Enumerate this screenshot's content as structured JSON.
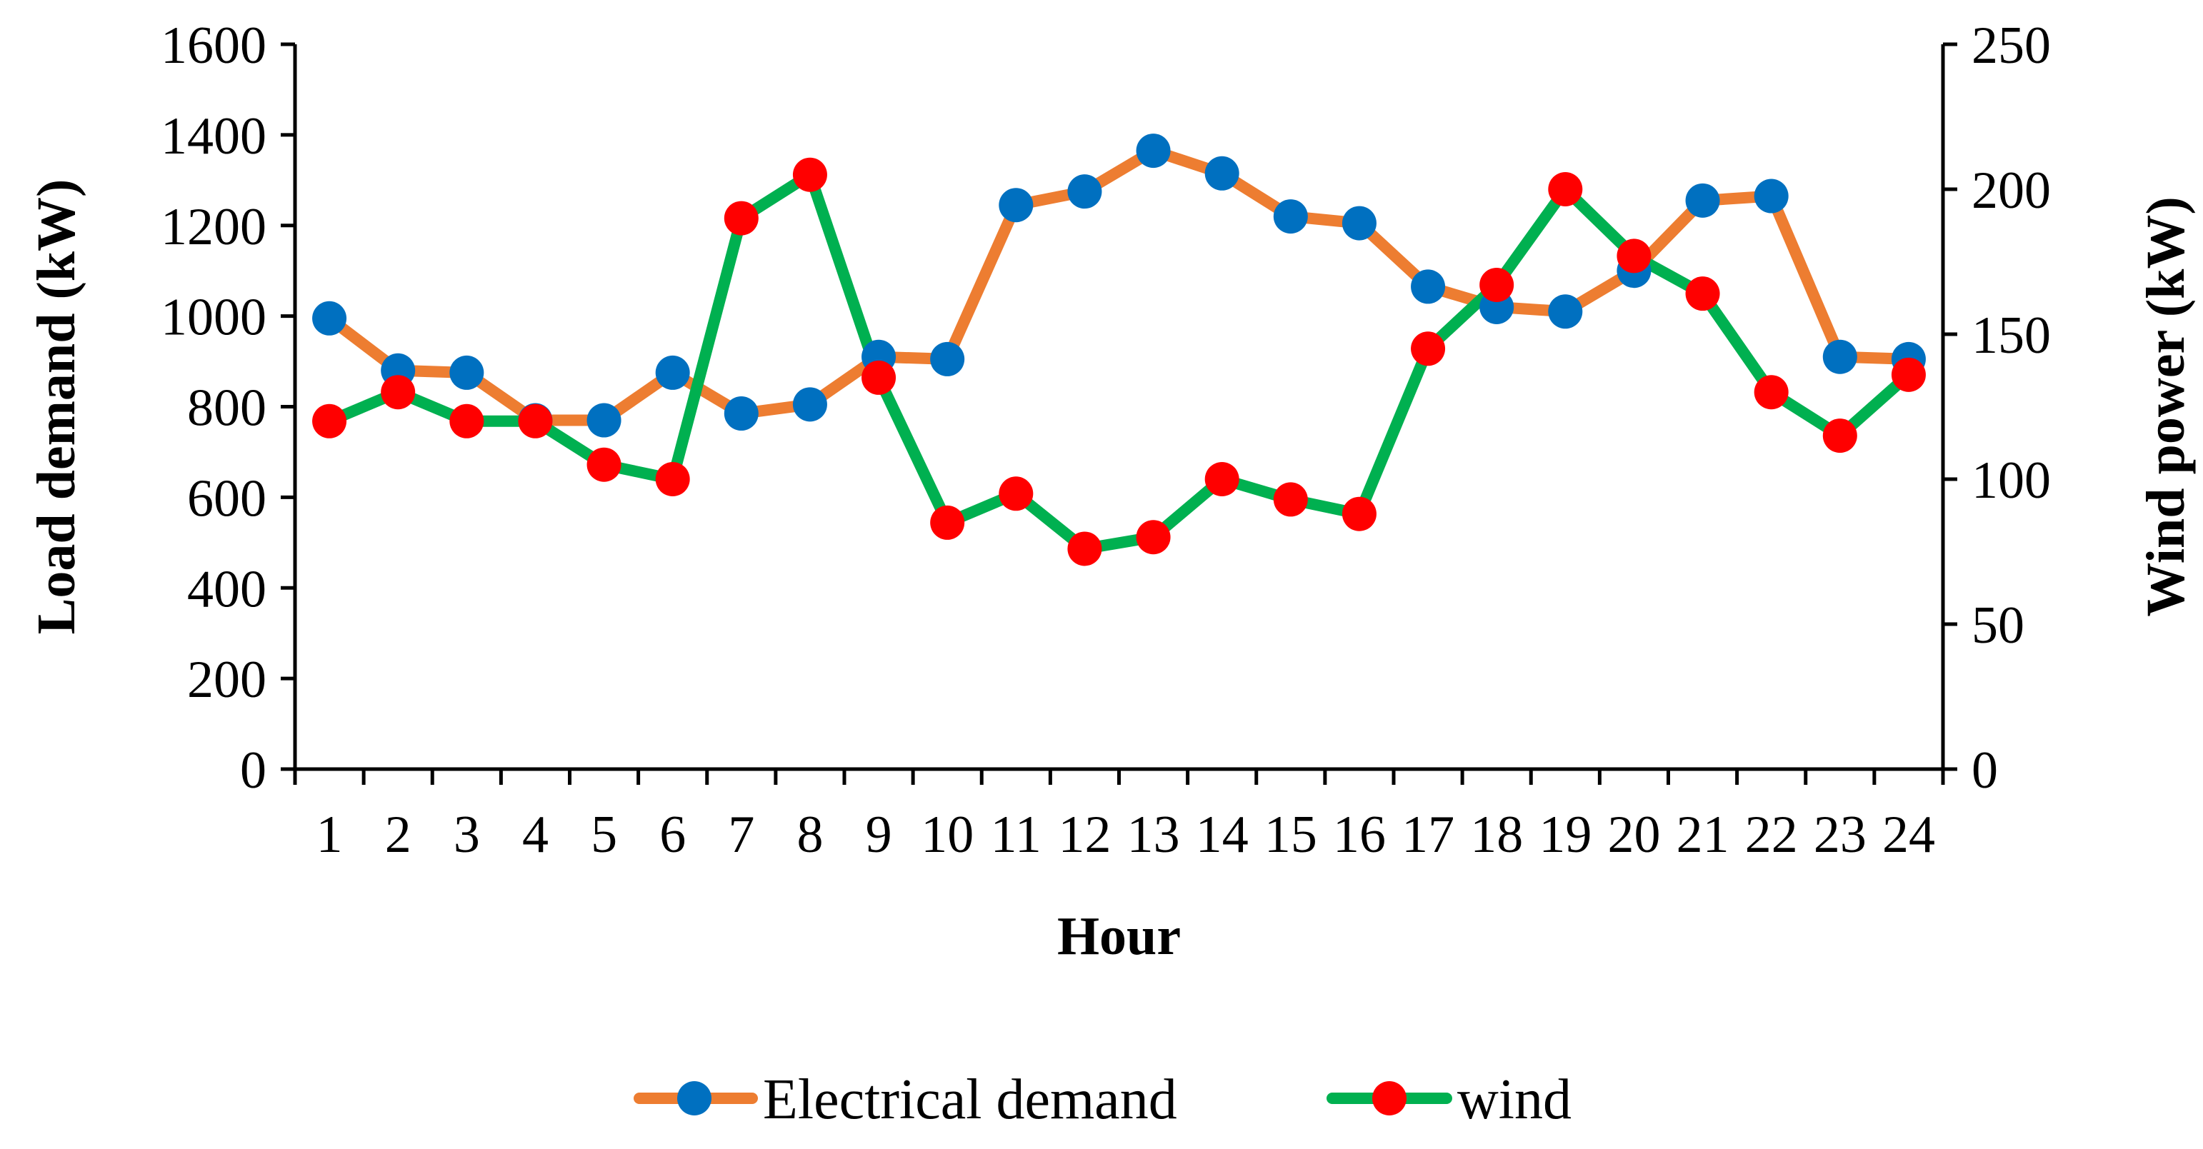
{
  "chart_data": {
    "type": "line",
    "title": "",
    "xlabel": "Hour",
    "ylabel_left": "Load demand (kW)",
    "ylabel_right": "Wind power (kW)",
    "categories": [
      "1",
      "2",
      "3",
      "4",
      "5",
      "6",
      "7",
      "8",
      "9",
      "10",
      "11",
      "12",
      "13",
      "14",
      "15",
      "16",
      "17",
      "18",
      "19",
      "20",
      "21",
      "22",
      "23",
      "24"
    ],
    "ylim_left": [
      0,
      1600
    ],
    "yticks_left": [
      "0",
      "200",
      "400",
      "600",
      "800",
      "1000",
      "1200",
      "1400",
      "1600"
    ],
    "ylim_right": [
      0,
      250
    ],
    "yticks_right": [
      "0",
      "50",
      "100",
      "150",
      "200",
      "250"
    ],
    "grid": false,
    "legend_position": "bottom",
    "series": [
      {
        "name": "Electrical demand",
        "axis": "left",
        "line_color": "#ED7D31",
        "marker_color": "#0070C0",
        "values": [
          995,
          880,
          875,
          770,
          770,
          875,
          785,
          805,
          910,
          905,
          1245,
          1275,
          1365,
          1315,
          1220,
          1205,
          1065,
          1020,
          1010,
          1100,
          1255,
          1265,
          910,
          905
        ]
      },
      {
        "name": "wind",
        "axis": "right",
        "line_color": "#00B050",
        "marker_color": "#FF0000",
        "values": [
          120,
          130,
          120,
          120,
          105,
          100,
          190,
          205,
          135,
          85,
          95,
          76,
          80,
          100,
          93,
          88,
          145,
          167,
          200,
          177,
          164,
          130,
          115,
          136
        ]
      }
    ]
  }
}
